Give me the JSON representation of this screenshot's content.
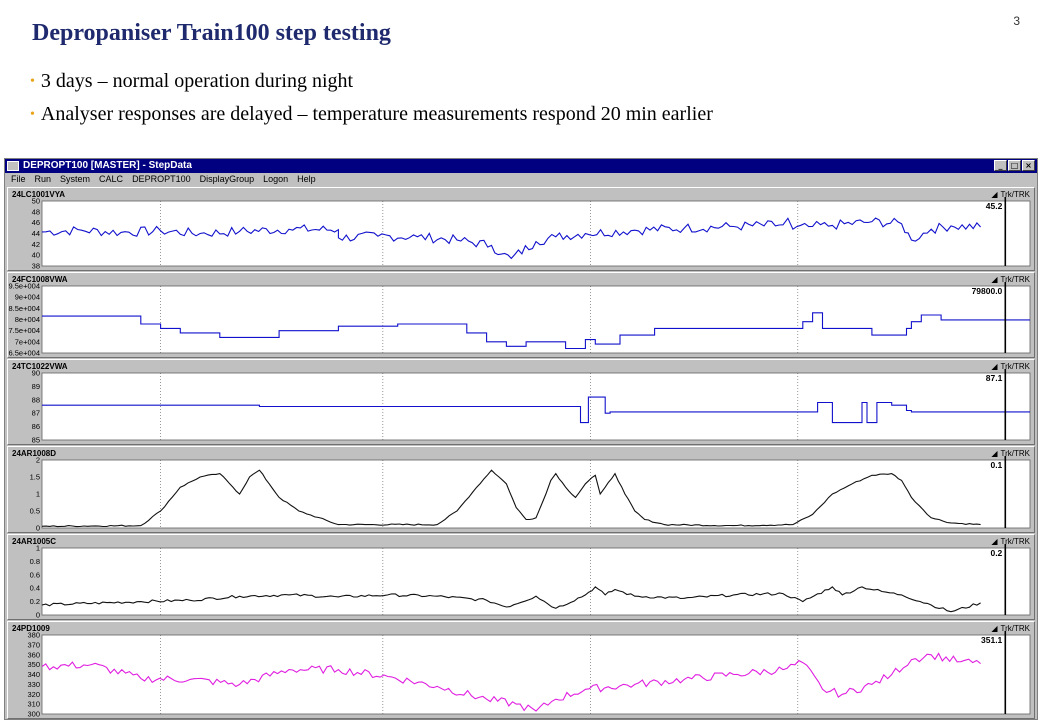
{
  "slide": {
    "title": "Depropaniser Train100 step testing",
    "page_number": "3",
    "bullets": [
      "3 days – normal operation during night",
      "Analyser responses are delayed – temperature measurements respond 20 min earlier"
    ]
  },
  "window": {
    "title": "DEPROPT100 [MASTER]  - StepData",
    "buttons": {
      "minimize": "_",
      "restore": "□",
      "close": "×"
    },
    "menu": [
      "File",
      "Run",
      "System",
      "CALC",
      "DEPROPT100",
      "DisplayGroup",
      "Logon",
      "Help"
    ]
  },
  "trk_label": "Trk/TRK",
  "chart_data": [
    {
      "type": "line",
      "tag": "24LC1001VYA",
      "color": "#1111cc",
      "ylim": [
        38,
        50
      ],
      "y_ticks": [
        "50",
        "48",
        "46",
        "44",
        "42",
        "40",
        "38"
      ],
      "current_value": "45.2",
      "x": [
        0,
        0.04,
        0.08,
        0.12,
        0.16,
        0.2,
        0.25,
        0.3,
        0.3,
        0.34,
        0.38,
        0.42,
        0.455,
        0.465,
        0.475,
        0.5,
        0.52,
        0.55,
        0.6,
        0.65,
        0.7,
        0.75,
        0.755,
        0.76,
        0.78,
        0.8,
        0.84,
        0.87,
        0.88,
        0.9,
        0.92,
        0.95
      ],
      "y": [
        44.3,
        44.6,
        44.2,
        44.5,
        44.0,
        44.4,
        44.8,
        44.7,
        43.2,
        43.5,
        43.4,
        42.8,
        41.8,
        40.2,
        39.4,
        42.5,
        43.4,
        44.0,
        44.6,
        45.0,
        45.3,
        45.6,
        46.8,
        44.8,
        45.3,
        45.5,
        46.2,
        45.8,
        42.8,
        44.8,
        45.4,
        45.2
      ],
      "noise": 0.9
    },
    {
      "type": "line",
      "tag": "24FC1008VWA",
      "color": "#1111cc",
      "ylim": [
        65000,
        95000
      ],
      "y_ticks": [
        "9.5e+004",
        "9e+004",
        "8.5e+004",
        "8e+004",
        "7.5e+004",
        "7e+004",
        "6.5e+004"
      ],
      "current_value": "79800.0",
      "x": [
        0,
        0.1,
        0.1,
        0.12,
        0.12,
        0.14,
        0.14,
        0.18,
        0.18,
        0.24,
        0.24,
        0.3,
        0.3,
        0.36,
        0.36,
        0.43,
        0.43,
        0.45,
        0.45,
        0.47,
        0.47,
        0.49,
        0.49,
        0.53,
        0.53,
        0.55,
        0.55,
        0.56,
        0.56,
        0.585,
        0.585,
        0.62,
        0.62,
        0.77,
        0.77,
        0.78,
        0.78,
        0.79,
        0.79,
        0.84,
        0.84,
        0.875,
        0.875,
        0.88,
        0.88,
        0.89,
        0.89,
        0.91,
        0.91,
        1.0
      ],
      "y": [
        81500,
        81500,
        78000,
        78000,
        76000,
        76000,
        74000,
        74000,
        72000,
        72000,
        75000,
        75000,
        77000,
        77000,
        78000,
        78000,
        74000,
        74000,
        70000,
        70000,
        68000,
        68000,
        70000,
        70000,
        67000,
        67000,
        71000,
        71000,
        69000,
        69000,
        73000,
        73000,
        76000,
        76000,
        79000,
        79000,
        83000,
        83000,
        76000,
        76000,
        73000,
        73000,
        76000,
        76000,
        79000,
        79000,
        82000,
        82000,
        79800,
        79800
      ],
      "noise": 0
    },
    {
      "type": "line",
      "tag": "24TC1022VWA",
      "color": "#1111cc",
      "ylim": [
        85,
        90
      ],
      "y_ticks": [
        "90",
        "89",
        "88",
        "87",
        "86",
        "85"
      ],
      "current_value": "87.1",
      "x": [
        0,
        0.22,
        0.22,
        0.545,
        0.545,
        0.553,
        0.553,
        0.57,
        0.57,
        0.575,
        0.575,
        0.785,
        0.785,
        0.8,
        0.8,
        0.82,
        0.82,
        0.83,
        0.83,
        0.835,
        0.835,
        0.845,
        0.845,
        0.86,
        0.86,
        0.875,
        0.875,
        0.88,
        0.88,
        1.0
      ],
      "y": [
        87.6,
        87.6,
        87.5,
        87.5,
        86.3,
        86.3,
        88.2,
        88.2,
        87.0,
        87.0,
        87.1,
        87.1,
        87.8,
        87.8,
        86.3,
        86.3,
        86.3,
        86.3,
        87.8,
        87.8,
        86.3,
        86.3,
        87.8,
        87.8,
        87.6,
        87.6,
        87.2,
        87.2,
        87.1,
        87.1
      ],
      "noise": 0
    },
    {
      "type": "line",
      "tag": "24AR1008D",
      "color": "#111111",
      "ylim": [
        0,
        2
      ],
      "y_ticks": [
        "2",
        "1.5",
        "1",
        "0.5",
        "0"
      ],
      "current_value": "0.1",
      "x": [
        0,
        0.1,
        0.12,
        0.14,
        0.16,
        0.18,
        0.19,
        0.2,
        0.21,
        0.22,
        0.23,
        0.24,
        0.26,
        0.3,
        0.4,
        0.42,
        0.44,
        0.455,
        0.47,
        0.48,
        0.49,
        0.5,
        0.51,
        0.515,
        0.52,
        0.53,
        0.54,
        0.55,
        0.56,
        0.565,
        0.57,
        0.58,
        0.59,
        0.6,
        0.61,
        0.63,
        0.7,
        0.76,
        0.78,
        0.8,
        0.82,
        0.84,
        0.86,
        0.87,
        0.88,
        0.9,
        0.92,
        0.95
      ],
      "y": [
        0.05,
        0.07,
        0.5,
        1.2,
        1.5,
        1.6,
        1.3,
        1.0,
        1.5,
        1.7,
        1.3,
        0.9,
        0.5,
        0.1,
        0.1,
        0.5,
        1.2,
        1.7,
        1.3,
        0.6,
        0.25,
        0.3,
        1.0,
        1.4,
        1.6,
        1.2,
        0.9,
        1.3,
        1.55,
        1.0,
        1.2,
        1.6,
        1.0,
        0.5,
        0.25,
        0.1,
        0.07,
        0.1,
        0.4,
        1.0,
        1.3,
        1.55,
        1.6,
        1.4,
        0.9,
        0.3,
        0.15,
        0.1
      ],
      "noise": 0.02
    },
    {
      "type": "line",
      "tag": "24AR1005C",
      "color": "#111111",
      "ylim": [
        0,
        1
      ],
      "y_ticks": [
        "1",
        "0.8",
        "0.6",
        "0.4",
        "0.2",
        "0"
      ],
      "current_value": "0.2",
      "x": [
        0,
        0.1,
        0.15,
        0.2,
        0.25,
        0.3,
        0.35,
        0.4,
        0.45,
        0.47,
        0.5,
        0.52,
        0.55,
        0.56,
        0.57,
        0.58,
        0.6,
        0.65,
        0.7,
        0.75,
        0.77,
        0.8,
        0.81,
        0.83,
        0.85,
        0.87,
        0.9,
        0.92,
        0.95
      ],
      "y": [
        0.15,
        0.2,
        0.22,
        0.28,
        0.3,
        0.27,
        0.3,
        0.28,
        0.22,
        0.12,
        0.28,
        0.1,
        0.3,
        0.42,
        0.3,
        0.38,
        0.28,
        0.25,
        0.3,
        0.32,
        0.2,
        0.42,
        0.3,
        0.42,
        0.35,
        0.3,
        0.15,
        0.05,
        0.18
      ],
      "noise": 0.02
    },
    {
      "type": "line",
      "tag": "24PD1009",
      "color": "#e01ee0",
      "ylim": [
        300,
        380
      ],
      "y_ticks": [
        "380",
        "370",
        "360",
        "350",
        "340",
        "330",
        "320",
        "310",
        "300"
      ],
      "current_value": "351.1",
      "x": [
        0,
        0.05,
        0.1,
        0.15,
        0.2,
        0.25,
        0.3,
        0.35,
        0.4,
        0.45,
        0.48,
        0.5,
        0.52,
        0.55,
        0.6,
        0.65,
        0.7,
        0.75,
        0.77,
        0.79,
        0.81,
        0.84,
        0.86,
        0.88,
        0.9,
        0.93,
        0.95
      ],
      "y": [
        348,
        350,
        336,
        335,
        330,
        345,
        345,
        338,
        328,
        315,
        310,
        303,
        315,
        325,
        330,
        335,
        340,
        345,
        352,
        325,
        320,
        330,
        340,
        355,
        360,
        353,
        351
      ],
      "noise": 4
    }
  ]
}
